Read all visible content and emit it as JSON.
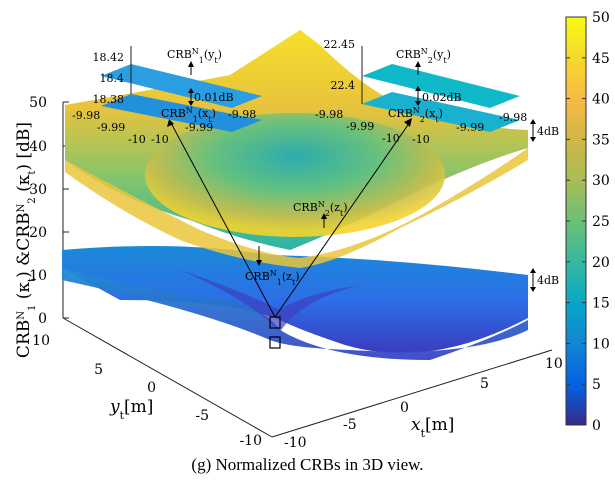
{
  "chart_data": {
    "type": "surface3d",
    "caption": "(g) Normalized CRBs in 3D view.",
    "xlabel": "x",
    "xlabel_sub": "t",
    "xlabel_unit": "[m]",
    "ylabel": "y",
    "ylabel_sub": "t",
    "ylabel_unit": "[m]",
    "zlabel": "CRB",
    "zlabel_full": "CRB1N(κt) & CRB2N(κt) [dB]",
    "x_ticks": [
      "-10",
      "-5",
      "0",
      "5",
      "10"
    ],
    "y_ticks": [
      "10",
      "5",
      "0",
      "-5",
      "-10"
    ],
    "z_ticks": [
      "0",
      "10",
      "20",
      "30",
      "40",
      "50"
    ],
    "xlim": [
      -10,
      10
    ],
    "ylim": [
      -10,
      10
    ],
    "zlim": [
      0,
      50
    ],
    "colorbar": {
      "ticks": [
        "0",
        "5",
        "10",
        "15",
        "20",
        "25",
        "30",
        "35",
        "40",
        "45",
        "50"
      ],
      "range": [
        0,
        50
      ],
      "colormap": "parula"
    },
    "series": [
      {
        "label": "CRB1N(zt)",
        "min_db": 1,
        "max_db": 22
      },
      {
        "label": "CRB2N(zt)",
        "min_db": 23,
        "max_db": 47
      }
    ],
    "annotations": {
      "crb1_z": {
        "main": "CRB",
        "sup": "N",
        "sub": "1",
        "arg": "(z",
        "arg_sub": "t",
        "close": ")"
      },
      "crb2_z": {
        "main": "CRB",
        "sup": "N",
        "sub": "2",
        "arg": "(z",
        "arg_sub": "t",
        "close": ")"
      },
      "gap_upper": "4dB",
      "gap_lower": "4dB"
    },
    "inset_left": {
      "y_ticks": [
        "18.42",
        "18.4",
        "18.38"
      ],
      "x_ticks": [
        "-9.98",
        "-9.99",
        "-10",
        "-10",
        "-9.99",
        "-9.98"
      ],
      "top_label": {
        "main": "CRB",
        "sup": "N",
        "sub": "1",
        "arg": "(y",
        "arg_sub": "t",
        "close": ")"
      },
      "bottom_label": {
        "main": "CRB",
        "sup": "N",
        "sub": "1",
        "arg": "(x",
        "arg_sub": "t",
        "close": ")"
      },
      "gap": "0.01dB"
    },
    "inset_right": {
      "y_ticks": [
        "22.45",
        "22.4"
      ],
      "x_ticks": [
        "-9.98",
        "-9.99",
        "-10",
        "-10",
        "-9.99",
        "-9.98"
      ],
      "top_label": {
        "main": "CRB",
        "sup": "N",
        "sub": "2",
        "arg": "(y",
        "arg_sub": "t",
        "close": ")"
      },
      "bottom_label": {
        "main": "CRB",
        "sup": "N",
        "sub": "2",
        "arg": "(x",
        "arg_sub": "t",
        "close": ")"
      },
      "gap": "0.02dB"
    }
  }
}
